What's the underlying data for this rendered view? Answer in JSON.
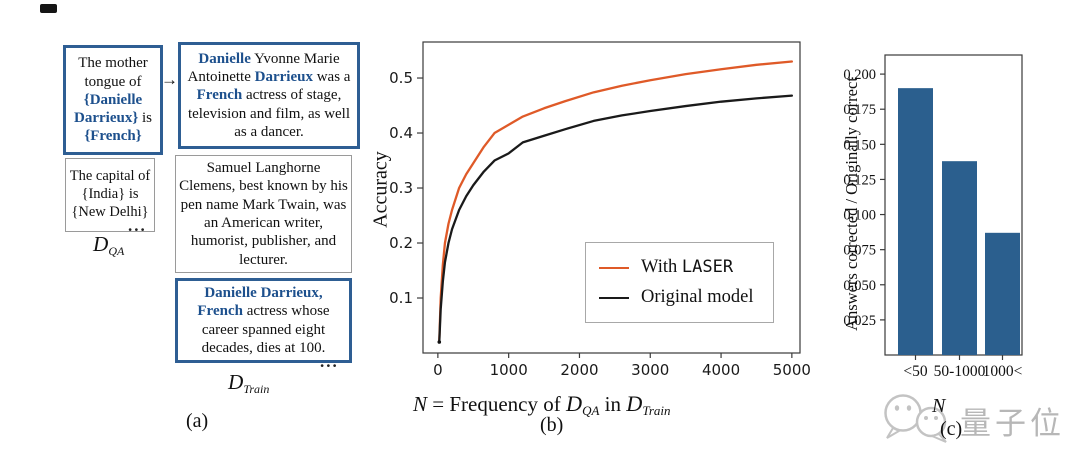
{
  "colors": {
    "blue-border": "#2e5e93",
    "blue-text": "#1d508d",
    "laser-orange": "#df5a28",
    "original-black": "#1a1a1a",
    "bar-blue": "#2b5f8e",
    "spine": "#3a3a3a"
  },
  "panel_a": {
    "arrow": "→",
    "dots": "...",
    "box1": [
      {
        "t": "The mother tongue of ",
        "c": "k"
      },
      {
        "t": "{Danielle Darrieux}",
        "c": "b"
      },
      {
        "t": " is ",
        "c": "k"
      },
      {
        "t": "{French}",
        "c": "b"
      }
    ],
    "box2": [
      {
        "t": "Danielle",
        "c": "b"
      },
      {
        "t": " Yvonne Marie Antoinette ",
        "c": "k"
      },
      {
        "t": "Darrieux",
        "c": "b"
      },
      {
        "t": " was a ",
        "c": "k"
      },
      {
        "t": "French",
        "c": "b"
      },
      {
        "t": " actress of stage, television and film, as well as a dancer.",
        "c": "k"
      }
    ],
    "box3": [
      {
        "t": "The capital of {India} is {New Delhi}",
        "c": "k"
      }
    ],
    "box4": [
      {
        "t": "Samuel Langhorne Clemens, best known by his pen name Mark Twain, was an American writer, humorist, publisher, and lecturer.",
        "c": "k"
      }
    ],
    "box5": [
      {
        "t": "Danielle Darrieux,",
        "c": "b"
      },
      {
        "t": " ",
        "c": "k"
      },
      {
        "t": "French",
        "c": "b"
      },
      {
        "t": " actress whose career spanned eight decades, dies at 100.",
        "c": "k"
      }
    ],
    "d_qa": {
      "d": "D",
      "sub": "QA"
    },
    "d_train": {
      "d": "D",
      "sub": "Train"
    },
    "label": "(a)"
  },
  "panel_b": {
    "ylabel": "Accuracy",
    "xlabel": {
      "n": "N",
      "eq": " = Frequency of ",
      "d1": "D",
      "d1sub": "QA",
      "mid": " in ",
      "d2": "D",
      "d2sub": "Train"
    },
    "legend": {
      "with": "With ",
      "laser": "LASER",
      "original": "Original model"
    },
    "label": "(b)"
  },
  "panel_c": {
    "ylabel": "Answers corrected / Originally correct",
    "xlabel": "N",
    "label": "(c)",
    "watermark_text": "量子位"
  },
  "chart_data": [
    {
      "id": "accuracy-vs-frequency",
      "type": "line",
      "xlabel": "N = Frequency of D_QA in D_Train",
      "ylabel": "Accuracy",
      "xlim": [
        -210,
        5115
      ],
      "ylim": [
        0,
        0.5655
      ],
      "grid": false,
      "legend_position": "lower right",
      "xticks": [
        {
          "v": 0,
          "l": "0"
        },
        {
          "v": 1000,
          "l": "1000"
        },
        {
          "v": 2000,
          "l": "2000"
        },
        {
          "v": 3000,
          "l": "3000"
        },
        {
          "v": 4000,
          "l": "4000"
        },
        {
          "v": 5000,
          "l": "5000"
        }
      ],
      "yticks": [
        {
          "v": 0.1,
          "l": "0.1"
        },
        {
          "v": 0.2,
          "l": "0.2"
        },
        {
          "v": 0.3,
          "l": "0.3"
        },
        {
          "v": 0.4,
          "l": "0.4"
        },
        {
          "v": 0.5,
          "l": "0.5"
        }
      ],
      "x": [
        20,
        40,
        70,
        100,
        150,
        200,
        300,
        400,
        500,
        650,
        800,
        1000,
        1200,
        1500,
        1800,
        2200,
        2600,
        3000,
        3500,
        4000,
        4500,
        5000
      ],
      "series": [
        {
          "name": "With LASER",
          "color": "#df5a28",
          "values": [
            0.022,
            0.1,
            0.16,
            0.2,
            0.235,
            0.26,
            0.3,
            0.325,
            0.345,
            0.375,
            0.4,
            0.415,
            0.43,
            0.445,
            0.458,
            0.474,
            0.486,
            0.496,
            0.507,
            0.516,
            0.524,
            0.53
          ]
        },
        {
          "name": "Original model",
          "color": "#1a1a1a",
          "values": [
            0.02,
            0.08,
            0.13,
            0.165,
            0.2,
            0.225,
            0.26,
            0.285,
            0.305,
            0.33,
            0.35,
            0.363,
            0.383,
            0.395,
            0.407,
            0.422,
            0.432,
            0.44,
            0.449,
            0.457,
            0.463,
            0.468
          ]
        }
      ]
    },
    {
      "id": "answers-corrected-ratio",
      "type": "bar",
      "categories": [
        "<50",
        "50-1000",
        "1000<"
      ],
      "values": [
        0.19,
        0.138,
        0.087
      ],
      "xlabel": "N",
      "ylabel": "Answers corrected / Originally correct",
      "ylim": [
        0,
        0.2136
      ],
      "bar_color": "#2b5f8e",
      "yticks": [
        {
          "v": 0.025,
          "l": "0.025"
        },
        {
          "v": 0.05,
          "l": "0.050"
        },
        {
          "v": 0.075,
          "l": "0.075"
        },
        {
          "v": 0.1,
          "l": "0.100"
        },
        {
          "v": 0.125,
          "l": "0.125"
        },
        {
          "v": 0.15,
          "l": "0.150"
        },
        {
          "v": 0.175,
          "l": "0.175"
        },
        {
          "v": 0.2,
          "l": "0.200"
        }
      ]
    }
  ]
}
